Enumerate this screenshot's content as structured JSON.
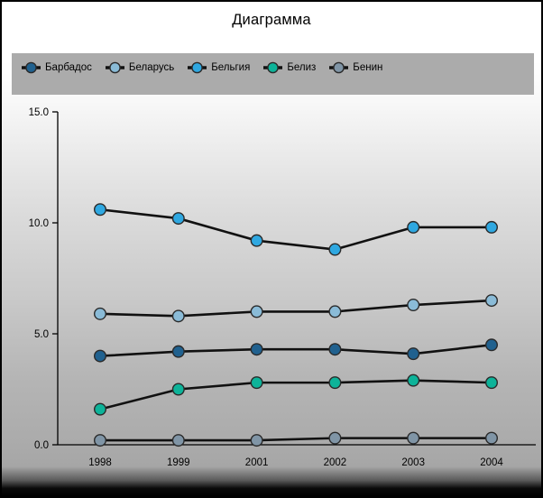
{
  "window": {
    "title": "Диаграмма"
  },
  "legend": {
    "position": "top",
    "background": "#ababab"
  },
  "chart_data": {
    "type": "line",
    "title": "Диаграмма",
    "categories": [
      "1998",
      "1999",
      "2001",
      "2002",
      "2003",
      "2004"
    ],
    "series": [
      {
        "name": "Барбадос",
        "color": "#20618f",
        "values": [
          4.0,
          4.2,
          4.3,
          4.3,
          4.1,
          4.5
        ]
      },
      {
        "name": "Беларусь",
        "color": "#8abbd7",
        "values": [
          5.9,
          5.8,
          6.0,
          6.0,
          6.3,
          6.5
        ]
      },
      {
        "name": "Бельгия",
        "color": "#2fa8e1",
        "values": [
          10.6,
          10.2,
          9.2,
          8.8,
          9.8,
          9.8
        ]
      },
      {
        "name": "Белиз",
        "color": "#0db399",
        "values": [
          1.6,
          2.5,
          2.8,
          2.8,
          2.9,
          2.8
        ]
      },
      {
        "name": "Бенин",
        "color": "#8095a6",
        "values": [
          0.2,
          0.2,
          0.2,
          0.3,
          0.3,
          0.3
        ]
      }
    ],
    "xlabel": "",
    "ylabel": "",
    "ylim": [
      0,
      15
    ],
    "yticks": [
      {
        "value": 0,
        "label": "0.0"
      },
      {
        "value": 5,
        "label": "5.0"
      },
      {
        "value": 10,
        "label": "10.0"
      },
      {
        "value": 15,
        "label": "15.0"
      }
    ],
    "grid": false,
    "legend_position": "top",
    "line_color": "#111111",
    "axis_color": "#000000",
    "marker_outline": "#2a2a2a"
  }
}
